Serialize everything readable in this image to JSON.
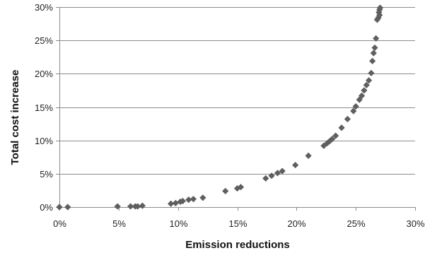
{
  "chart_data": {
    "type": "scatter",
    "title": "",
    "xlabel": "Emission reductions",
    "ylabel": "Total cost increase",
    "xlim": [
      0,
      0.3
    ],
    "ylim": [
      0,
      0.3
    ],
    "x_ticks": [
      "0%",
      "5%",
      "10%",
      "15%",
      "20%",
      "25%",
      "30%"
    ],
    "y_ticks": [
      "0%",
      "5%",
      "10%",
      "15%",
      "20%",
      "25%",
      "30%"
    ],
    "grid": "horizontal",
    "legend": "none",
    "marker": "diamond",
    "marker_color": "#5f5f5f",
    "grid_color": "#8c8c8c",
    "series": [
      {
        "x": [
          0.0,
          0.007,
          0.049,
          0.06,
          0.064,
          0.066,
          0.07,
          0.094,
          0.098,
          0.102,
          0.104,
          0.109,
          0.113,
          0.121,
          0.14,
          0.15,
          0.153,
          0.174,
          0.179,
          0.184,
          0.188,
          0.199,
          0.21,
          0.223,
          0.226,
          0.228,
          0.23,
          0.233,
          0.238,
          0.243,
          0.248,
          0.25,
          0.253,
          0.255,
          0.257,
          0.259,
          0.261,
          0.263,
          0.264,
          0.265,
          0.266,
          0.267,
          0.268,
          0.269,
          0.27,
          0.2695,
          0.27,
          0.2705
        ],
        "y": [
          0.0,
          0.0,
          0.001,
          0.001,
          0.001,
          0.001,
          0.002,
          0.005,
          0.006,
          0.008,
          0.009,
          0.011,
          0.012,
          0.014,
          0.024,
          0.028,
          0.03,
          0.043,
          0.047,
          0.051,
          0.054,
          0.063,
          0.077,
          0.092,
          0.096,
          0.099,
          0.102,
          0.107,
          0.119,
          0.132,
          0.144,
          0.151,
          0.161,
          0.167,
          0.175,
          0.183,
          0.19,
          0.201,
          0.219,
          0.231,
          0.239,
          0.253,
          0.281,
          0.284,
          0.288,
          0.292,
          0.296,
          0.299
        ]
      }
    ]
  }
}
